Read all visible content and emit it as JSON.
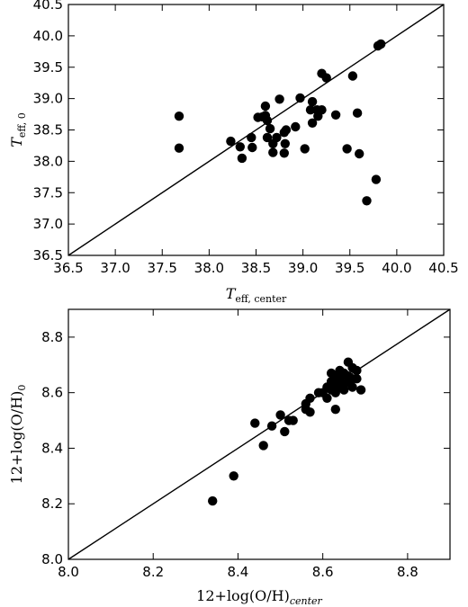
{
  "chart_data": [
    {
      "type": "scatter",
      "xlabel": "T",
      "xlabel_sub": "eff, center",
      "ylabel": "T",
      "ylabel_sub": "eff, 0",
      "xlim": [
        36.5,
        40.5
      ],
      "ylim": [
        36.5,
        40.5
      ],
      "xticks": [
        "36.5",
        "37.0",
        "37.5",
        "38.0",
        "38.5",
        "39.0",
        "39.5",
        "40.0",
        "40.5"
      ],
      "yticks": [
        "36.5",
        "37.0",
        "37.5",
        "38.0",
        "38.5",
        "39.0",
        "39.5",
        "40.0",
        "40.5"
      ],
      "grid": false,
      "reference_line": "y = x",
      "marker_color": "#000000",
      "points": [
        [
          37.68,
          38.72
        ],
        [
          37.68,
          38.21
        ],
        [
          38.23,
          38.32
        ],
        [
          38.33,
          38.23
        ],
        [
          38.35,
          38.05
        ],
        [
          38.45,
          38.38
        ],
        [
          38.46,
          38.22
        ],
        [
          38.52,
          38.7
        ],
        [
          38.57,
          38.71
        ],
        [
          38.6,
          38.88
        ],
        [
          38.6,
          38.73
        ],
        [
          38.62,
          38.65
        ],
        [
          38.62,
          38.38
        ],
        [
          38.65,
          38.52
        ],
        [
          38.68,
          38.14
        ],
        [
          38.68,
          38.28
        ],
        [
          38.72,
          38.38
        ],
        [
          38.75,
          38.99
        ],
        [
          38.8,
          38.46
        ],
        [
          38.8,
          38.13
        ],
        [
          38.81,
          38.28
        ],
        [
          38.82,
          38.5
        ],
        [
          38.92,
          38.55
        ],
        [
          38.97,
          39.01
        ],
        [
          39.02,
          38.2
        ],
        [
          39.08,
          38.82
        ],
        [
          39.1,
          38.95
        ],
        [
          39.1,
          38.61
        ],
        [
          39.15,
          38.82
        ],
        [
          39.16,
          38.72
        ],
        [
          39.2,
          39.4
        ],
        [
          39.2,
          38.82
        ],
        [
          39.25,
          39.33
        ],
        [
          39.35,
          38.74
        ],
        [
          39.47,
          38.2
        ],
        [
          39.53,
          39.36
        ],
        [
          39.58,
          38.77
        ],
        [
          39.6,
          38.12
        ],
        [
          39.68,
          37.37
        ],
        [
          39.78,
          37.71
        ],
        [
          39.8,
          39.84
        ],
        [
          39.83,
          39.87
        ]
      ]
    },
    {
      "type": "scatter",
      "xlabel": "12+log(O/H)",
      "xlabel_sub": "center",
      "ylabel": "12+log(O/H)",
      "ylabel_sub": "0",
      "xlim": [
        8.0,
        8.9
      ],
      "ylim": [
        8.0,
        8.9
      ],
      "xticks": [
        "8.0",
        "8.2",
        "8.4",
        "8.6",
        "8.8"
      ],
      "yticks": [
        "8.0",
        "8.2",
        "8.4",
        "8.6",
        "8.8"
      ],
      "grid": false,
      "reference_line": "y = x",
      "marker_color": "#000000",
      "points": [
        [
          8.34,
          8.21
        ],
        [
          8.39,
          8.3
        ],
        [
          8.44,
          8.49
        ],
        [
          8.46,
          8.41
        ],
        [
          8.48,
          8.48
        ],
        [
          8.5,
          8.52
        ],
        [
          8.51,
          8.46
        ],
        [
          8.52,
          8.5
        ],
        [
          8.53,
          8.5
        ],
        [
          8.56,
          8.56
        ],
        [
          8.56,
          8.54
        ],
        [
          8.57,
          8.58
        ],
        [
          8.57,
          8.53
        ],
        [
          8.59,
          8.6
        ],
        [
          8.6,
          8.6
        ],
        [
          8.61,
          8.58
        ],
        [
          8.61,
          8.62
        ],
        [
          8.62,
          8.67
        ],
        [
          8.62,
          8.64
        ],
        [
          8.62,
          8.61
        ],
        [
          8.63,
          8.66
        ],
        [
          8.63,
          8.63
        ],
        [
          8.63,
          8.6
        ],
        [
          8.63,
          8.54
        ],
        [
          8.64,
          8.68
        ],
        [
          8.64,
          8.65
        ],
        [
          8.64,
          8.62
        ],
        [
          8.65,
          8.67
        ],
        [
          8.65,
          8.63
        ],
        [
          8.65,
          8.61
        ],
        [
          8.66,
          8.71
        ],
        [
          8.66,
          8.66
        ],
        [
          8.66,
          8.64
        ],
        [
          8.67,
          8.69
        ],
        [
          8.67,
          8.65
        ],
        [
          8.67,
          8.62
        ],
        [
          8.68,
          8.68
        ],
        [
          8.68,
          8.65
        ],
        [
          8.69,
          8.61
        ]
      ]
    }
  ]
}
